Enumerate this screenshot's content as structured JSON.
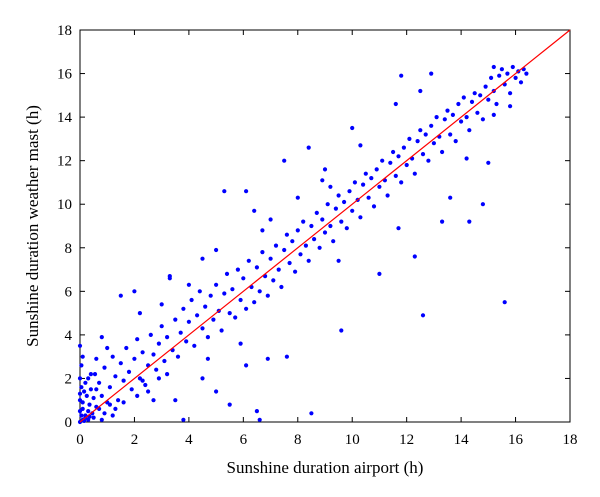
{
  "chart_data": {
    "type": "scatter",
    "xlabel": "Sunshine duration airport (h)",
    "ylabel": "Sunshine duration weather mast (h)",
    "xlim": [
      0,
      18
    ],
    "ylim": [
      0,
      18
    ],
    "xticks": [
      0,
      2,
      4,
      6,
      8,
      10,
      12,
      14,
      16,
      18
    ],
    "yticks": [
      0,
      2,
      4,
      6,
      8,
      10,
      12,
      14,
      16,
      18
    ],
    "grid": false,
    "legend": "none",
    "marker_color": "#0000ff",
    "reference_line": {
      "from": [
        0,
        0
      ],
      "to": [
        18,
        18
      ],
      "color": "#ff0000"
    },
    "series": [
      {
        "points": [
          [
            0.0,
            0.0
          ],
          [
            0.05,
            0.3
          ],
          [
            0.1,
            0.6
          ],
          [
            0.0,
            1.0
          ],
          [
            0.15,
            1.4
          ],
          [
            0.05,
            1.6
          ],
          [
            0.2,
            0.2
          ],
          [
            0.1,
            0.9
          ],
          [
            0.0,
            0.5
          ],
          [
            0.25,
            1.2
          ],
          [
            0.3,
            0.1
          ],
          [
            0.35,
            0.8
          ],
          [
            0.4,
            1.5
          ],
          [
            0.0,
            2.0
          ],
          [
            0.05,
            2.6
          ],
          [
            0.0,
            3.5
          ],
          [
            0.1,
            3.0
          ],
          [
            0.45,
            0.4
          ],
          [
            0.5,
            1.1
          ],
          [
            0.55,
            2.2
          ],
          [
            0.6,
            0.7
          ],
          [
            0.7,
            1.8
          ],
          [
            0.8,
            1.2
          ],
          [
            0.9,
            2.5
          ],
          [
            1.0,
            0.9
          ],
          [
            1.1,
            1.6
          ],
          [
            1.2,
            3.0
          ],
          [
            1.3,
            2.1
          ],
          [
            1.4,
            1.0
          ],
          [
            1.5,
            2.7
          ],
          [
            1.6,
            1.9
          ],
          [
            1.7,
            3.4
          ],
          [
            1.8,
            2.3
          ],
          [
            1.9,
            1.5
          ],
          [
            2.0,
            2.9
          ],
          [
            2.1,
            3.8
          ],
          [
            2.2,
            2.0
          ],
          [
            2.3,
            3.2
          ],
          [
            2.4,
            1.7
          ],
          [
            2.5,
            2.6
          ],
          [
            2.6,
            4.0
          ],
          [
            2.7,
            3.1
          ],
          [
            2.8,
            2.4
          ],
          [
            2.9,
            3.6
          ],
          [
            3.0,
            4.4
          ],
          [
            3.1,
            2.8
          ],
          [
            3.2,
            3.9
          ],
          [
            3.3,
            6.6
          ],
          [
            3.4,
            3.3
          ],
          [
            3.5,
            4.7
          ],
          [
            3.6,
            3.0
          ],
          [
            3.7,
            4.1
          ],
          [
            3.8,
            5.2
          ],
          [
            3.9,
            3.7
          ],
          [
            4.0,
            4.6
          ],
          [
            4.1,
            5.6
          ],
          [
            4.2,
            3.5
          ],
          [
            4.3,
            4.9
          ],
          [
            4.4,
            6.0
          ],
          [
            4.5,
            4.3
          ],
          [
            4.6,
            5.3
          ],
          [
            4.7,
            3.9
          ],
          [
            4.8,
            5.8
          ],
          [
            4.9,
            4.7
          ],
          [
            5.0,
            6.3
          ],
          [
            5.1,
            5.1
          ],
          [
            5.2,
            4.2
          ],
          [
            5.3,
            5.9
          ],
          [
            5.4,
            6.8
          ],
          [
            5.5,
            5.0
          ],
          [
            5.6,
            6.1
          ],
          [
            5.7,
            4.8
          ],
          [
            5.8,
            7.0
          ],
          [
            5.9,
            5.6
          ],
          [
            6.0,
            6.6
          ],
          [
            6.1,
            5.2
          ],
          [
            6.2,
            7.4
          ],
          [
            6.3,
            6.2
          ],
          [
            6.4,
            5.5
          ],
          [
            6.5,
            7.1
          ],
          [
            6.6,
            6.0
          ],
          [
            6.7,
            7.8
          ],
          [
            6.8,
            6.7
          ],
          [
            6.9,
            5.8
          ],
          [
            7.0,
            7.5
          ],
          [
            7.1,
            6.5
          ],
          [
            7.2,
            8.1
          ],
          [
            7.3,
            7.0
          ],
          [
            7.4,
            6.2
          ],
          [
            7.5,
            7.9
          ],
          [
            7.6,
            8.6
          ],
          [
            7.7,
            7.3
          ],
          [
            7.8,
            8.3
          ],
          [
            7.9,
            6.9
          ],
          [
            8.0,
            8.8
          ],
          [
            8.1,
            7.7
          ],
          [
            8.2,
            9.2
          ],
          [
            8.3,
            8.1
          ],
          [
            8.4,
            7.4
          ],
          [
            8.5,
            9.0
          ],
          [
            8.6,
            8.4
          ],
          [
            8.7,
            9.6
          ],
          [
            8.8,
            8.0
          ],
          [
            8.9,
            9.3
          ],
          [
            9.0,
            8.7
          ],
          [
            9.1,
            10.0
          ],
          [
            9.2,
            9.0
          ],
          [
            9.3,
            8.3
          ],
          [
            9.4,
            9.8
          ],
          [
            9.5,
            10.4
          ],
          [
            9.6,
            9.2
          ],
          [
            9.7,
            10.1
          ],
          [
            9.8,
            8.9
          ],
          [
            9.9,
            10.6
          ],
          [
            10.0,
            9.7
          ],
          [
            10.1,
            11.0
          ],
          [
            10.2,
            10.2
          ],
          [
            10.3,
            9.4
          ],
          [
            10.4,
            10.9
          ],
          [
            10.5,
            11.4
          ],
          [
            10.6,
            10.3
          ],
          [
            10.7,
            11.2
          ],
          [
            10.8,
            9.9
          ],
          [
            10.9,
            11.6
          ],
          [
            11.0,
            10.8
          ],
          [
            11.1,
            12.0
          ],
          [
            11.2,
            11.1
          ],
          [
            11.3,
            10.4
          ],
          [
            11.4,
            11.9
          ],
          [
            11.5,
            12.4
          ],
          [
            11.6,
            11.3
          ],
          [
            11.7,
            12.2
          ],
          [
            11.8,
            11.0
          ],
          [
            11.9,
            12.6
          ],
          [
            12.0,
            11.8
          ],
          [
            12.1,
            13.0
          ],
          [
            12.2,
            12.1
          ],
          [
            12.3,
            11.4
          ],
          [
            12.4,
            12.9
          ],
          [
            12.5,
            13.4
          ],
          [
            12.6,
            12.3
          ],
          [
            12.7,
            13.2
          ],
          [
            12.8,
            12.0
          ],
          [
            12.9,
            13.6
          ],
          [
            13.0,
            12.8
          ],
          [
            13.1,
            14.0
          ],
          [
            13.2,
            13.1
          ],
          [
            13.3,
            12.4
          ],
          [
            13.4,
            13.9
          ],
          [
            13.5,
            14.3
          ],
          [
            13.6,
            13.2
          ],
          [
            13.7,
            14.1
          ],
          [
            13.8,
            12.9
          ],
          [
            13.9,
            14.6
          ],
          [
            14.0,
            13.8
          ],
          [
            14.1,
            14.9
          ],
          [
            14.2,
            14.0
          ],
          [
            14.3,
            13.4
          ],
          [
            14.4,
            14.7
          ],
          [
            14.5,
            15.1
          ],
          [
            14.6,
            14.2
          ],
          [
            14.7,
            15.0
          ],
          [
            14.8,
            13.9
          ],
          [
            14.9,
            15.4
          ],
          [
            15.0,
            14.8
          ],
          [
            15.1,
            15.8
          ],
          [
            15.2,
            15.2
          ],
          [
            15.3,
            14.6
          ],
          [
            15.4,
            15.9
          ],
          [
            15.5,
            16.2
          ],
          [
            15.6,
            15.5
          ],
          [
            15.7,
            16.0
          ],
          [
            15.8,
            15.1
          ],
          [
            15.9,
            16.3
          ],
          [
            16.0,
            15.8
          ],
          [
            16.1,
            16.1
          ],
          [
            16.2,
            15.6
          ],
          [
            16.3,
            16.2
          ],
          [
            16.4,
            16.0
          ],
          [
            15.2,
            16.3
          ],
          [
            1.5,
            5.8
          ],
          [
            2.0,
            6.0
          ],
          [
            2.2,
            5.0
          ],
          [
            3.3,
            6.7
          ],
          [
            4.5,
            7.5
          ],
          [
            5.3,
            10.6
          ],
          [
            6.1,
            10.6
          ],
          [
            8.4,
            12.6
          ],
          [
            9.0,
            11.6
          ],
          [
            7.5,
            12.0
          ],
          [
            8.9,
            11.1
          ],
          [
            10.3,
            12.7
          ],
          [
            11.8,
            15.9
          ],
          [
            12.9,
            16.0
          ],
          [
            11.6,
            14.6
          ],
          [
            6.4,
            9.7
          ],
          [
            4.0,
            6.3
          ],
          [
            3.0,
            5.4
          ],
          [
            7.0,
            9.3
          ],
          [
            10.0,
            13.5
          ],
          [
            12.5,
            15.2
          ],
          [
            9.2,
            10.8
          ],
          [
            6.7,
            8.8
          ],
          [
            8.0,
            10.3
          ],
          [
            5.0,
            7.9
          ],
          [
            13.3,
            9.2
          ],
          [
            14.3,
            9.2
          ],
          [
            14.8,
            10.0
          ],
          [
            15.0,
            11.9
          ],
          [
            15.6,
            5.5
          ],
          [
            12.6,
            4.9
          ],
          [
            11.0,
            6.8
          ],
          [
            9.6,
            4.2
          ],
          [
            8.5,
            0.4
          ],
          [
            6.5,
            0.5
          ],
          [
            6.6,
            0.1
          ],
          [
            5.5,
            0.8
          ],
          [
            5.0,
            1.4
          ],
          [
            4.5,
            2.0
          ],
          [
            3.8,
            0.1
          ],
          [
            3.5,
            1.0
          ],
          [
            2.7,
            1.0
          ],
          [
            1.2,
            0.3
          ],
          [
            6.9,
            2.9
          ],
          [
            7.6,
            3.0
          ],
          [
            6.1,
            2.6
          ],
          [
            5.9,
            3.6
          ],
          [
            4.7,
            2.9
          ],
          [
            9.5,
            7.4
          ],
          [
            11.7,
            8.9
          ],
          [
            12.3,
            7.6
          ],
          [
            13.6,
            10.3
          ],
          [
            14.2,
            12.1
          ],
          [
            15.2,
            14.1
          ],
          [
            15.8,
            14.5
          ],
          [
            0.8,
            3.9
          ],
          [
            0.4,
            2.2
          ],
          [
            0.6,
            2.9
          ],
          [
            1.0,
            3.4
          ],
          [
            0.3,
            2.0
          ],
          [
            0.2,
            0.3
          ],
          [
            0.1,
            0.1
          ],
          [
            0.3,
            0.5
          ],
          [
            0.5,
            0.2
          ],
          [
            0.7,
            0.6
          ],
          [
            0.9,
            0.4
          ],
          [
            1.1,
            0.8
          ],
          [
            1.3,
            0.6
          ],
          [
            0.2,
            1.8
          ],
          [
            0.0,
            1.3
          ],
          [
            0.15,
            0.05
          ],
          [
            0.35,
            0.25
          ],
          [
            0.6,
            1.5
          ],
          [
            0.8,
            0.1
          ],
          [
            1.6,
            0.9
          ],
          [
            2.1,
            1.2
          ],
          [
            2.3,
            1.9
          ],
          [
            2.5,
            1.4
          ],
          [
            2.9,
            2.0
          ],
          [
            3.2,
            2.2
          ]
        ]
      }
    ]
  }
}
